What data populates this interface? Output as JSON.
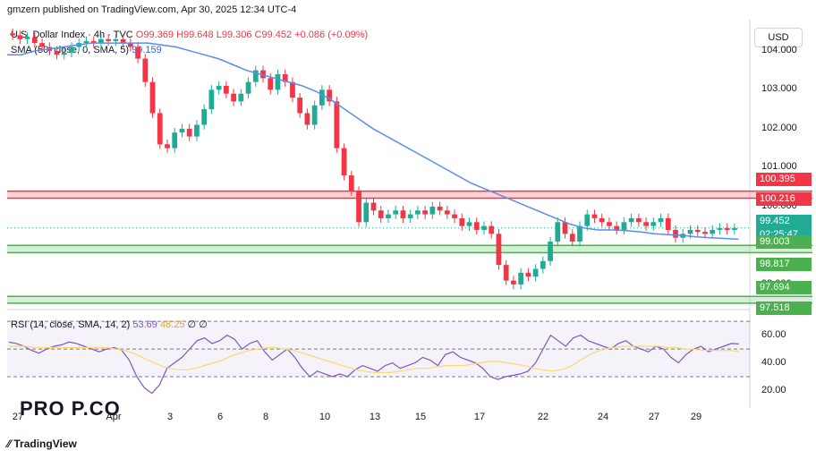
{
  "header": {
    "publisher": "gmzern published on TradingView.com, Apr 30, 2025 12:34 UTC-4"
  },
  "legend": {
    "symbol": "U.S. Dollar Index · 4h · TVC",
    "open": "O99.369",
    "high": "H99.648",
    "low": "L99.306",
    "close": "C99.452",
    "change": "+0.086 (+0.09%)",
    "sma_label": "SMA (50, close, 0, SMA, 5)",
    "sma_value": "99.159",
    "rsi_label": "RSI (14, close, SMA, 14, 2)",
    "rsi_value": "53.69",
    "rsi_sma_value": "48.25",
    "rsi_extra_1": "∅",
    "rsi_extra_2": "∅"
  },
  "currency_button": "USD",
  "price_axis": {
    "ticks": [
      "104.000",
      "103.000",
      "102.000",
      "101.000",
      "100.000",
      "98.000"
    ],
    "badges": {
      "resistance_top": "100.395",
      "resistance_bottom": "100.216",
      "current": "99.452",
      "countdown": "02:25:47",
      "support_top": "99.003",
      "support_bottom": "98.817",
      "lower_top": "97.694",
      "lower_bottom": "97.518"
    }
  },
  "rsi_axis": {
    "ticks": [
      "60.00",
      "40.00",
      "20.00"
    ]
  },
  "date_axis": {
    "labels": [
      "27",
      "Apr",
      "3",
      "6",
      "8",
      "10",
      "13",
      "15",
      "17",
      "22",
      "24",
      "27",
      "29"
    ]
  },
  "branding": {
    "logo_text": "PRO   P.CO",
    "footer": "TradingView"
  },
  "colors": {
    "up": "#22ab94",
    "down": "#f23645",
    "sma": "#5b8cf0",
    "resistance_zone": "#f23645",
    "support_zone": "#4caf50",
    "rsi_line": "#7e57c2",
    "rsi_sma": "#f7dc6f"
  },
  "chart_data": {
    "type": "candlestick",
    "title": "U.S. Dollar Index · 4h · TVC",
    "ylim": [
      97.4,
      104.8
    ],
    "x_labels": [
      "27",
      "Apr",
      "3",
      "6",
      "8",
      "10",
      "13",
      "15",
      "17",
      "22",
      "24",
      "27",
      "29"
    ],
    "close_series": [
      104.4,
      104.3,
      104.35,
      104.2,
      104.1,
      104.0,
      103.9,
      103.95,
      104.1,
      104.2,
      104.25,
      104.2,
      104.3,
      104.25,
      104.3,
      104.2,
      104.1,
      103.8,
      103.2,
      102.4,
      101.6,
      101.5,
      101.9,
      102.0,
      101.8,
      102.1,
      102.5,
      103.0,
      103.1,
      102.9,
      102.7,
      102.9,
      103.2,
      103.5,
      103.3,
      103.0,
      103.4,
      103.2,
      102.8,
      102.4,
      102.1,
      102.6,
      103.0,
      102.7,
      101.5,
      100.8,
      100.4,
      99.6,
      100.1,
      99.9,
      99.7,
      99.8,
      99.9,
      99.7,
      99.8,
      99.9,
      99.8,
      100.0,
      99.9,
      99.8,
      99.7,
      99.5,
      99.6,
      99.4,
      99.5,
      99.3,
      98.5,
      98.1,
      98.0,
      98.3,
      98.2,
      98.4,
      98.6,
      99.1,
      99.6,
      99.3,
      99.1,
      99.5,
      99.8,
      99.7,
      99.6,
      99.5,
      99.4,
      99.6,
      99.7,
      99.6,
      99.5,
      99.6,
      99.7,
      99.4,
      99.2,
      99.3,
      99.4,
      99.35,
      99.3,
      99.4,
      99.45,
      99.4,
      99.45
    ],
    "sma_series": [
      103.9,
      103.9,
      104.0,
      104.05,
      104.1,
      104.15,
      104.2,
      104.2,
      104.2,
      104.2,
      104.2,
      104.15,
      104.1,
      104.0,
      103.9,
      103.8,
      103.65,
      103.5,
      103.4,
      103.3,
      103.2,
      103.1,
      102.95,
      102.75,
      102.5,
      102.25,
      102.0,
      101.8,
      101.6,
      101.4,
      101.2,
      101.0,
      100.8,
      100.6,
      100.45,
      100.3,
      100.15,
      100.0,
      99.85,
      99.7,
      99.55,
      99.45,
      99.4,
      99.4,
      99.38,
      99.35,
      99.3,
      99.28,
      99.26,
      99.22,
      99.2,
      99.18,
      99.16
    ],
    "zones": [
      {
        "name": "resistance",
        "from": 100.216,
        "to": 100.395
      },
      {
        "name": "support",
        "from": 98.817,
        "to": 99.003
      },
      {
        "name": "lower_support",
        "from": 97.518,
        "to": 97.694
      }
    ],
    "rsi": {
      "ylim": [
        10,
        72
      ],
      "levels": [
        70,
        50,
        30
      ],
      "values": [
        55,
        54,
        52,
        49,
        47,
        50,
        52,
        53,
        55,
        54,
        52,
        50,
        48,
        50,
        51,
        49,
        42,
        30,
        22,
        18,
        24,
        36,
        40,
        44,
        50,
        56,
        58,
        54,
        56,
        60,
        57,
        50,
        54,
        56,
        48,
        42,
        46,
        50,
        44,
        36,
        30,
        34,
        32,
        30,
        32,
        30,
        35,
        38,
        36,
        34,
        38,
        40,
        36,
        38,
        40,
        44,
        42,
        38,
        46,
        48,
        44,
        42,
        40,
        36,
        30,
        28,
        30,
        31,
        32,
        34,
        40,
        50,
        60,
        56,
        52,
        58,
        60,
        56,
        54,
        52,
        50,
        54,
        56,
        52,
        50,
        48,
        52,
        50,
        44,
        40,
        46,
        50,
        52,
        48,
        50,
        52,
        54,
        53.69
      ],
      "sma_values": [
        52,
        52,
        52,
        51,
        51,
        51,
        51,
        51,
        51,
        51,
        51,
        51,
        50,
        49,
        47,
        44,
        41,
        38,
        36,
        35,
        35,
        36,
        38,
        40,
        42,
        45,
        47,
        49,
        50,
        51,
        51,
        50,
        49,
        47,
        45,
        43,
        41,
        39,
        37,
        35,
        34,
        33,
        33,
        33,
        34,
        35,
        36,
        36,
        37,
        38,
        38,
        38,
        39,
        40,
        41,
        41,
        40,
        39,
        38,
        36,
        35,
        34,
        35,
        37,
        41,
        45,
        48,
        50,
        51,
        52,
        52,
        52,
        52,
        52,
        51,
        51,
        50,
        50,
        49,
        49,
        49,
        49,
        48.25
      ]
    }
  }
}
